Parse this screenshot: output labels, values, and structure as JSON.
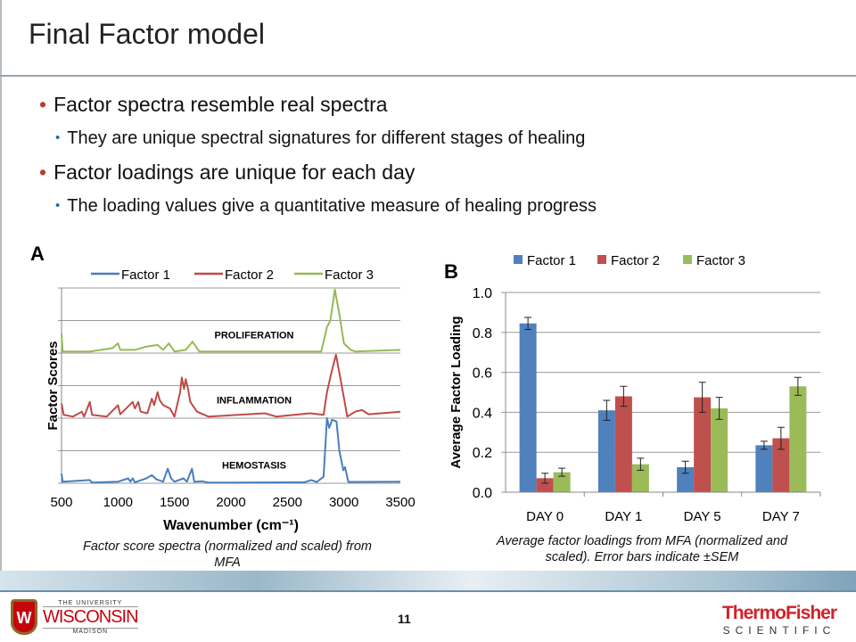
{
  "slide": {
    "title": "Final Factor model",
    "bullets": [
      {
        "text": "Factor spectra resemble real spectra",
        "sub": "They are unique spectral signatures for different stages of healing"
      },
      {
        "text": "Factor loadings are unique for each day",
        "sub": "The loading values give a quantitative measure of healing progress"
      }
    ],
    "caption_a": "Factor score spectra (normalized and scaled) from MFA",
    "caption_b": "Average factor loadings from MFA (normalized and scaled). Error bars indicate ±SEM",
    "page_number": "11",
    "logo_left": {
      "line1": "THE UNIVERSITY",
      "line2": "WISCONSIN",
      "line3": "MADISON",
      "crest": "W"
    },
    "logo_right": {
      "line1": "ThermoFisher",
      "line2": "SCIENTIFIC"
    }
  },
  "chart_data": [
    {
      "type": "line",
      "panel_label": "A",
      "xlabel": "Wavenumber (cm⁻¹)",
      "ylabel": "Factor Scores",
      "xlim": [
        500,
        3500
      ],
      "xticks": [
        "500",
        "1000",
        "1500",
        "2000",
        "2500",
        "3000",
        "3500"
      ],
      "grid": true,
      "legend": "top",
      "annotations": [
        "PROLIFERATION",
        "INFLAMMATION",
        "HEMOSTASIS"
      ],
      "series": [
        {
          "name": "Factor 1",
          "color": "#4a7ebb",
          "offset": 0,
          "label": "HEMOSTASIS",
          "points": [
            [
              500,
              0.3
            ],
            [
              510,
              0.05
            ],
            [
              750,
              0.1
            ],
            [
              770,
              0.02
            ],
            [
              1000,
              0.05
            ],
            [
              1090,
              0.15
            ],
            [
              1110,
              0.05
            ],
            [
              1130,
              0.15
            ],
            [
              1150,
              0.03
            ],
            [
              1250,
              0.15
            ],
            [
              1300,
              0.25
            ],
            [
              1340,
              0.12
            ],
            [
              1400,
              0.05
            ],
            [
              1440,
              0.45
            ],
            [
              1470,
              0.15
            ],
            [
              1500,
              0.05
            ],
            [
              1580,
              0.15
            ],
            [
              1610,
              0.05
            ],
            [
              1655,
              0.45
            ],
            [
              1675,
              0.05
            ],
            [
              1750,
              0.06
            ],
            [
              1800,
              0.02
            ],
            [
              2650,
              0.03
            ],
            [
              2710,
              0.1
            ],
            [
              2760,
              0.04
            ],
            [
              2820,
              0.2
            ],
            [
              2850,
              2.0
            ],
            [
              2870,
              1.7
            ],
            [
              2895,
              1.95
            ],
            [
              2935,
              1.9
            ],
            [
              2960,
              1.0
            ],
            [
              2995,
              0.4
            ],
            [
              3010,
              0.5
            ],
            [
              3040,
              0.04
            ],
            [
              3500,
              0.05
            ]
          ]
        },
        {
          "name": "Factor 2",
          "color": "#be4b48",
          "offset": 2,
          "label": "INFLAMMATION",
          "points": [
            [
              500,
              0.45
            ],
            [
              520,
              0.1
            ],
            [
              600,
              0.05
            ],
            [
              680,
              0.2
            ],
            [
              700,
              0.05
            ],
            [
              750,
              0.5
            ],
            [
              770,
              0.1
            ],
            [
              900,
              0.05
            ],
            [
              1000,
              0.4
            ],
            [
              1020,
              0.12
            ],
            [
              1130,
              0.5
            ],
            [
              1150,
              0.3
            ],
            [
              1180,
              0.5
            ],
            [
              1200,
              0.2
            ],
            [
              1260,
              0.15
            ],
            [
              1300,
              0.6
            ],
            [
              1320,
              0.4
            ],
            [
              1350,
              0.8
            ],
            [
              1370,
              0.55
            ],
            [
              1400,
              0.4
            ],
            [
              1460,
              0.3
            ],
            [
              1500,
              0.05
            ],
            [
              1550,
              0.8
            ],
            [
              1565,
              1.25
            ],
            [
              1585,
              0.9
            ],
            [
              1600,
              1.2
            ],
            [
              1620,
              0.9
            ],
            [
              1640,
              0.5
            ],
            [
              1700,
              0.2
            ],
            [
              1800,
              0.05
            ],
            [
              2300,
              0.15
            ],
            [
              2400,
              0.05
            ],
            [
              2700,
              0.15
            ],
            [
              2820,
              0.1
            ],
            [
              2850,
              0.8
            ],
            [
              2890,
              1.4
            ],
            [
              2930,
              1.95
            ],
            [
              2970,
              1.2
            ],
            [
              3030,
              0.05
            ],
            [
              3100,
              0.2
            ],
            [
              3160,
              0.25
            ],
            [
              3220,
              0.12
            ],
            [
              3500,
              0.2
            ]
          ]
        },
        {
          "name": "Factor 3",
          "color": "#98b954",
          "offset": 4,
          "label": "PROLIFERATION",
          "points": [
            [
              500,
              0.6
            ],
            [
              510,
              0.05
            ],
            [
              750,
              0.05
            ],
            [
              950,
              0.15
            ],
            [
              1000,
              0.3
            ],
            [
              1020,
              0.1
            ],
            [
              1150,
              0.1
            ],
            [
              1250,
              0.2
            ],
            [
              1350,
              0.25
            ],
            [
              1400,
              0.1
            ],
            [
              1450,
              0.3
            ],
            [
              1500,
              0.05
            ],
            [
              1600,
              0.1
            ],
            [
              1660,
              0.35
            ],
            [
              1720,
              0.05
            ],
            [
              2700,
              0.05
            ],
            [
              2800,
              0.05
            ],
            [
              2850,
              0.8
            ],
            [
              2880,
              1.0
            ],
            [
              2920,
              1.95
            ],
            [
              2960,
              1.2
            ],
            [
              3000,
              0.3
            ],
            [
              3060,
              0.1
            ],
            [
              3100,
              0.05
            ],
            [
              3500,
              0.1
            ]
          ]
        }
      ]
    },
    {
      "type": "bar",
      "panel_label": "B",
      "ylabel": "Average Factor Loading",
      "ylim": [
        0,
        1.0
      ],
      "yticks": [
        "0.0",
        "0.2",
        "0.4",
        "0.6",
        "0.8",
        "1.0"
      ],
      "grid": true,
      "legend": "top",
      "categories": [
        "DAY 0",
        "DAY 1",
        "DAY 5",
        "DAY 7"
      ],
      "series": [
        {
          "name": "Factor 1",
          "color": "#4f81bd",
          "values": [
            0.845,
            0.41,
            0.125,
            0.235
          ],
          "errors": [
            0.03,
            0.05,
            0.03,
            0.02
          ]
        },
        {
          "name": "Factor 2",
          "color": "#c0504d",
          "values": [
            0.07,
            0.48,
            0.475,
            0.27
          ],
          "errors": [
            0.025,
            0.05,
            0.075,
            0.055
          ]
        },
        {
          "name": "Factor 3",
          "color": "#9bbb59",
          "values": [
            0.1,
            0.14,
            0.42,
            0.53
          ],
          "errors": [
            0.02,
            0.03,
            0.055,
            0.045
          ]
        }
      ]
    }
  ]
}
